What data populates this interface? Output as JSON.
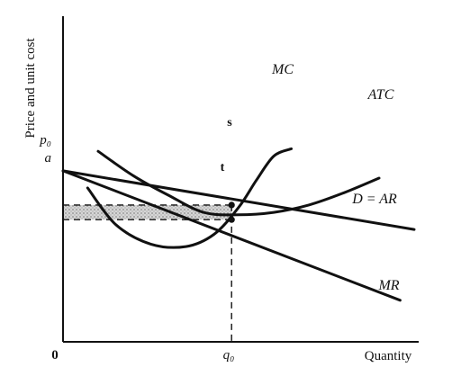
{
  "chart_data": {
    "type": "line",
    "title": "",
    "xlabel": "Quantity",
    "ylabel": "Price and unit cost",
    "origin_label": "0",
    "xlim": [
      0,
      10
    ],
    "ylim": [
      0,
      10
    ],
    "series": [
      {
        "name": "D = AR",
        "x": [
          0,
          10
        ],
        "y": [
          7.0,
          4.6
        ]
      },
      {
        "name": "MR",
        "x": [
          0,
          9.6
        ],
        "y": [
          7.0,
          1.7
        ]
      },
      {
        "name": "ATC",
        "x": [
          1,
          2,
          3,
          4,
          5,
          6,
          7,
          8,
          9
        ],
        "y": [
          7.8,
          6.8,
          6.0,
          5.3,
          5.2,
          5.3,
          5.6,
          6.1,
          6.7
        ]
      },
      {
        "name": "MC",
        "x": [
          0.7,
          1.5,
          2.5,
          3.5,
          4.3,
          5.0,
          5.5,
          6.0,
          6.5
        ],
        "y": [
          6.3,
          4.8,
          4.0,
          3.9,
          4.4,
          5.5,
          6.6,
          7.6,
          7.9
        ]
      }
    ],
    "guides": {
      "p0": {
        "label": "p₀",
        "value": 5.6
      },
      "a": {
        "label": "a",
        "value": 5.0
      },
      "q0": {
        "label": "q₀",
        "value": 4.8
      }
    },
    "points": [
      {
        "label": "s",
        "x": 4.8,
        "y": 5.6
      },
      {
        "label": "t",
        "x": 4.8,
        "y": 5.0
      }
    ],
    "profit_area": {
      "x": [
        0,
        4.8
      ],
      "y": [
        5.0,
        5.6
      ]
    },
    "colors": {
      "ink": "#111111",
      "shade": "#c9c9c9"
    }
  }
}
